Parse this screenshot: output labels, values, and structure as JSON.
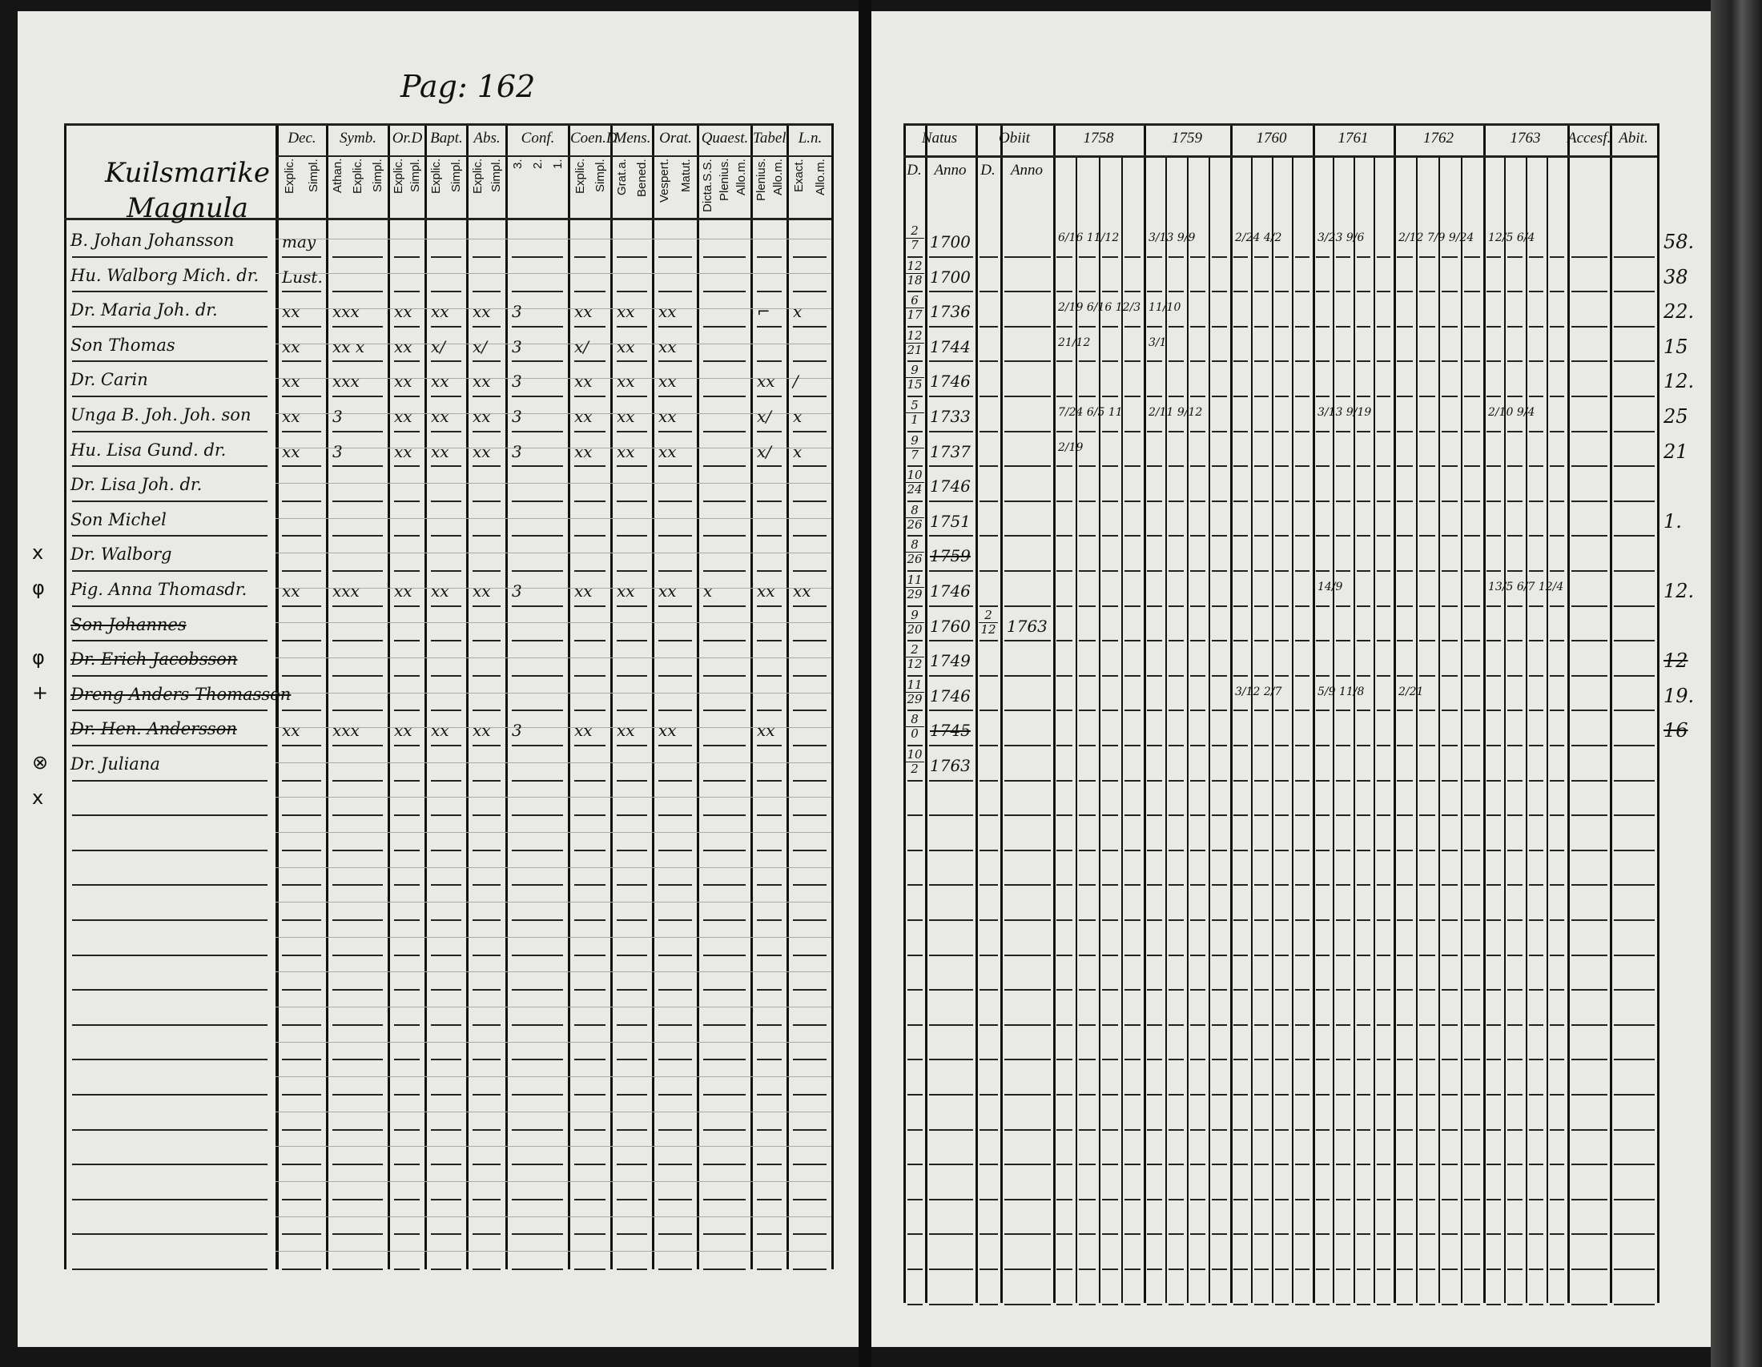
{
  "page_number": "Pag: 162",
  "parish": {
    "line1": "Kuilsmarike",
    "line2": "Magnula"
  },
  "left_table": {
    "headers": [
      {
        "label": "Dec.",
        "sub": [
          "Explic.",
          "Simpl."
        ]
      },
      {
        "label": "Symb.",
        "sub": [
          "Athan.",
          "Explic.",
          "Simpl."
        ]
      },
      {
        "label": "Or.D",
        "sub": [
          "Explic.",
          "Simpl."
        ]
      },
      {
        "label": "Bapt.",
        "sub": [
          "Explic.",
          "Simpl."
        ]
      },
      {
        "label": "Abs.",
        "sub": [
          "Explic.",
          "Simpl."
        ]
      },
      {
        "label": "Conf.",
        "sub": [
          "3.",
          "2.",
          "1."
        ]
      },
      {
        "label": "Coen.D",
        "sub": [
          "Explic.",
          "Simpl."
        ]
      },
      {
        "label": "Mens.",
        "sub": [
          "Grat.a.",
          "Bened."
        ]
      },
      {
        "label": "Orat.",
        "sub": [
          "Vespert.",
          "Matut."
        ]
      },
      {
        "label": "Quaest.",
        "sub": [
          "Dicta.S.S.",
          "Plenius.",
          "Allo.m."
        ]
      },
      {
        "label": "Tabel.",
        "sub": [
          "Plenius.",
          "Allo.m."
        ]
      },
      {
        "label": "L.n.",
        "sub": [
          "Exact.",
          "Allo.m."
        ]
      }
    ],
    "rows": [
      {
        "name": "B. Johan Johansson",
        "cells": [
          "may",
          "",
          "",
          "",
          "",
          "",
          "",
          "",
          "",
          "",
          "",
          ""
        ]
      },
      {
        "name": "Hu. Walborg Mich. dr.",
        "cells": [
          "Lust.",
          "",
          "",
          "",
          "",
          "",
          "",
          "",
          "",
          "",
          "",
          ""
        ]
      },
      {
        "name": "Dr. Maria Joh. dr.",
        "cells": [
          "xx",
          "xxx",
          "xx",
          "xx",
          "xx",
          "3",
          "xx",
          "xx",
          "xx",
          "",
          "⌐",
          "x"
        ]
      },
      {
        "name": "Son Thomas",
        "cells": [
          "xx",
          "xx x",
          "xx",
          "x/",
          "x/",
          "3",
          "x/",
          "xx",
          "xx",
          "",
          "",
          ""
        ]
      },
      {
        "name": "Dr. Carin",
        "cells": [
          "xx",
          "xxx",
          "xx",
          "xx",
          "xx",
          "3",
          "xx",
          "xx",
          "xx",
          "",
          "xx",
          "/"
        ]
      },
      {
        "name": "Unga B. Joh. Joh. son",
        "cells": [
          "xx",
          "3",
          "xx",
          "xx",
          "xx",
          "3",
          "xx",
          "xx",
          "xx",
          "",
          "x/",
          "x"
        ]
      },
      {
        "name": "Hu. Lisa Gund. dr.",
        "cells": [
          "xx",
          "3",
          "xx",
          "xx",
          "xx",
          "3",
          "xx",
          "xx",
          "xx",
          "",
          "x/",
          "x"
        ]
      },
      {
        "name": "Dr. Lisa Joh. dr.",
        "cells": [
          "",
          "",
          "",
          "",
          "",
          "",
          "",
          "",
          "",
          "",
          "",
          ""
        ]
      },
      {
        "name": "Son Michel",
        "cells": [
          "",
          "",
          "",
          "",
          "",
          "",
          "",
          "",
          "",
          "",
          "",
          ""
        ]
      },
      {
        "name": "Dr. Walborg",
        "cells": [
          "",
          "",
          "",
          "",
          "",
          "",
          "",
          "",
          "",
          "",
          "",
          ""
        ]
      },
      {
        "name": "Pig. Anna Thomasdr.",
        "cells": [
          "xx",
          "xxx",
          "xx",
          "xx",
          "xx",
          "3",
          "xx",
          "xx",
          "xx",
          "x",
          "xx",
          "xx"
        ]
      },
      {
        "name": "Son Johannes",
        "cells": [
          "",
          "",
          "",
          "",
          "",
          "",
          "",
          "",
          "",
          "",
          "",
          ""
        ],
        "struck": true
      },
      {
        "name": "Dr. Erich Jacobsson",
        "cells": [
          "",
          "",
          "",
          "",
          "",
          "",
          "",
          "",
          "",
          "",
          "",
          ""
        ],
        "struck": true
      },
      {
        "name": "Dreng Anders Thomasson",
        "cells": [
          "",
          "",
          "",
          "",
          "",
          "",
          "",
          "",
          "",
          "",
          "",
          ""
        ],
        "struck": true
      },
      {
        "name": "Dr. Hen. Andersson",
        "cells": [
          "xx",
          "xxx",
          "xx",
          "xx",
          "xx",
          "3",
          "xx",
          "xx",
          "xx",
          "",
          "xx",
          ""
        ],
        "struck": true
      },
      {
        "name": "Dr. Juliana",
        "cells": [
          "",
          "",
          "",
          "",
          "",
          "",
          "",
          "",
          "",
          "",
          "",
          ""
        ]
      }
    ],
    "margin_marks": [
      {
        "row": 9,
        "mark": "x"
      },
      {
        "row": 10,
        "mark": "φ"
      },
      {
        "row": 12,
        "mark": "φ"
      },
      {
        "row": 13,
        "mark": "+"
      },
      {
        "row": 15,
        "mark": "⊗"
      },
      {
        "row": 16,
        "mark": "x"
      }
    ]
  },
  "right_table": {
    "headers": {
      "natus": "Natus",
      "obiit": "Obiit",
      "natus_d": "D.",
      "natus_anno": "Anno",
      "obiit_d": "D.",
      "obiit_anno": "Anno",
      "years": [
        "1758",
        "1759",
        "1760",
        "1761",
        "1762",
        "1763"
      ],
      "accessit": "Accesf.",
      "abit": "Abit."
    },
    "rows": [
      {
        "d": [
          "2",
          "7"
        ],
        "anno": "1700",
        "abit": "58.",
        "marks": [
          "6/16 11/12",
          "3/13 9/9",
          "2/24 4/2",
          "3/23 9/6",
          "2/12 7/9 9/24",
          "12/5 6/4"
        ]
      },
      {
        "d": [
          "12",
          "18"
        ],
        "anno": "1700",
        "abit": "38"
      },
      {
        "d": [
          "6",
          "17"
        ],
        "anno": "1736",
        "abit": "22.",
        "marks": [
          "2/19 6/16 12/3",
          "11/10",
          "",
          "",
          "",
          ""
        ]
      },
      {
        "d": [
          "12",
          "21"
        ],
        "anno": "1744",
        "abit": "15",
        "marks": [
          "21/12",
          "3/1",
          "",
          "",
          "",
          ""
        ]
      },
      {
        "d": [
          "9",
          "15"
        ],
        "anno": "1746",
        "abit": "12."
      },
      {
        "d": [
          "5",
          "1"
        ],
        "anno": "1733",
        "abit": "25",
        "marks": [
          "7/24 6/5 11",
          "2/11 9/12",
          "",
          "3/13 9/19",
          "",
          "2/10 9/4"
        ]
      },
      {
        "d": [
          "9",
          "7"
        ],
        "anno": "1737",
        "abit": "21",
        "marks": [
          "2/19",
          "",
          "",
          "",
          "",
          ""
        ]
      },
      {
        "d": [
          "10",
          "24"
        ],
        "anno": "1746",
        "abit": ""
      },
      {
        "d": [
          "8",
          "26"
        ],
        "anno": "1751",
        "abit": "1."
      },
      {
        "d": [
          "8",
          "26"
        ],
        "anno": "1759",
        "anno_struck": true,
        "abit": ""
      },
      {
        "d": [
          "11",
          "29"
        ],
        "anno": "1746",
        "abit": "12.",
        "marks": [
          "",
          "",
          "",
          "14/9",
          "",
          "13/5 6/7 12/4"
        ]
      },
      {
        "d": [
          "9",
          "20"
        ],
        "anno": "1760",
        "obiit_d": [
          "2",
          "12"
        ],
        "obiit_anno": "1763",
        "abit": ""
      },
      {
        "d": [
          "2",
          "12"
        ],
        "anno": "1749",
        "abit": "12",
        "abit_struck": true
      },
      {
        "d": [
          "11",
          "29"
        ],
        "anno": "1746",
        "abit": "19.",
        "marks": [
          "",
          "",
          "3/12 2/7",
          "5/9 11/8",
          "2/21",
          ""
        ]
      },
      {
        "d": [
          "8",
          "0"
        ],
        "anno": "1745",
        "anno_struck": true,
        "abit": "16",
        "abit_struck": true
      },
      {
        "d": [
          "10",
          "2"
        ],
        "anno": "1763",
        "abit": ""
      }
    ]
  }
}
